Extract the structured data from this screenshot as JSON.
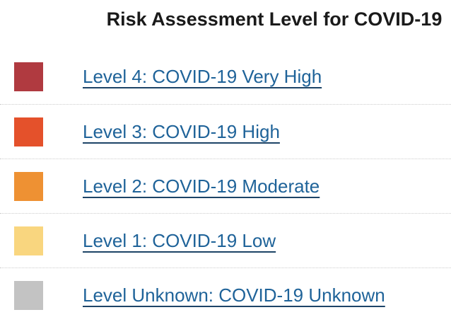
{
  "page": {
    "title": "Risk Assessment Level for COVID-19"
  },
  "risk_levels": [
    {
      "id": "level-4",
      "label": "Level 4: COVID-19 Very High",
      "color": "#B03A40"
    },
    {
      "id": "level-3",
      "label": "Level 3: COVID-19 High",
      "color": "#E4512B"
    },
    {
      "id": "level-2",
      "label": "Level 2: COVID-19 Moderate",
      "color": "#EE9133"
    },
    {
      "id": "level-1",
      "label": "Level 1: COVID-19 Low",
      "color": "#F9D67F"
    },
    {
      "id": "level-unknown",
      "label": "Level Unknown: COVID-19 Unknown",
      "color": "#C3C3C3"
    }
  ],
  "colors": {
    "link_text": "#1F6399",
    "link_underline": "#1D4467",
    "title_text": "#1A1A1A",
    "divider": "#CCCCCC"
  }
}
